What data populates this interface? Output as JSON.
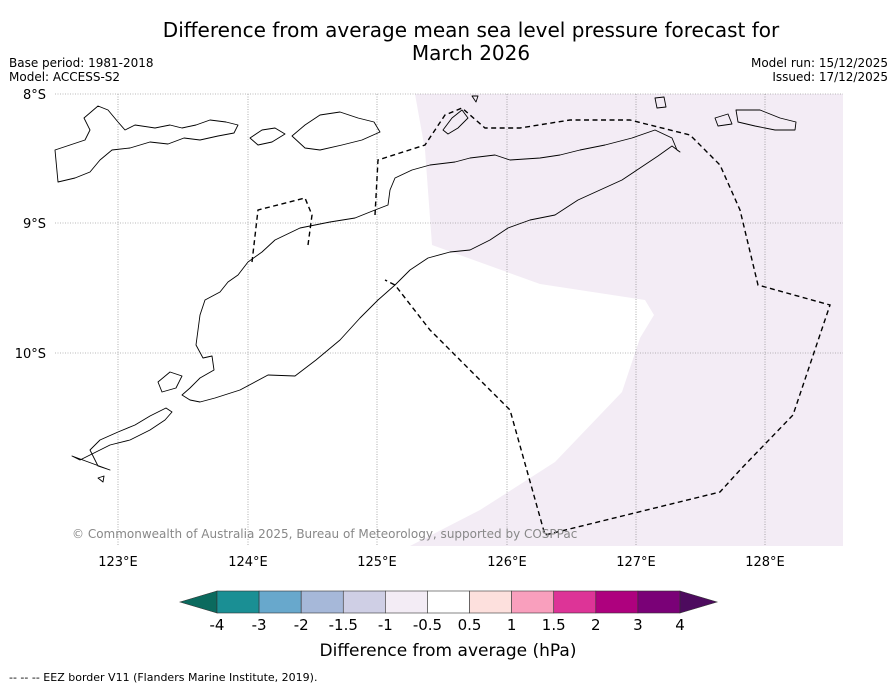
{
  "title_line1": "Difference from average mean sea level pressure forecast for",
  "title_line2": "March 2026",
  "meta_left": {
    "base_period": "Base period: 1981-2018",
    "model": "Model: ACCESS-S2"
  },
  "meta_right": {
    "model_run": "Model run: 15/12/2025",
    "issued": "Issued: 17/12/2025"
  },
  "map": {
    "lat_labels": [
      "8°S",
      "9°S",
      "10°S"
    ],
    "lon_labels": [
      "123°E",
      "124°E",
      "125°E",
      "126°E",
      "127°E",
      "128°E"
    ],
    "copyright": "© Commonwealth of Australia 2025, Bureau of Meteorology, supported by COSPPac",
    "anomaly_fill_color": "#f3ecf5"
  },
  "colorbar": {
    "tick_labels": [
      "-4",
      "-3",
      "-2",
      "-1.5",
      "-1",
      "-0.5",
      "0.5",
      "1",
      "1.5",
      "2",
      "3",
      "4"
    ],
    "colors": [
      "#1a8f94",
      "#68a8cc",
      "#a6b8d9",
      "#cfcfe5",
      "#f3ecf5",
      "#ffffff",
      "#fde0dd",
      "#f99fbd",
      "#dd3497",
      "#ae017e",
      "#7a0177"
    ],
    "under_color": "#0b6a5e",
    "over_color": "#4d0b5e",
    "label": "Difference from average (hPa)"
  },
  "footer": "--  --  -- EEZ border V11 (Flanders Marine Institute, 2019)."
}
